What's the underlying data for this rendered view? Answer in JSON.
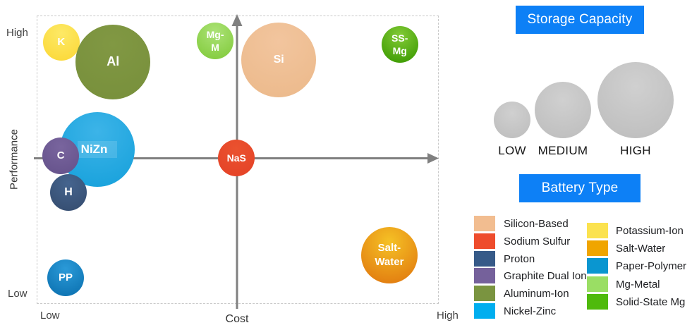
{
  "figure": {
    "y_axis_label": "Performance",
    "x_axis_label": "Cost",
    "y_high_label": "High",
    "y_low_label": "Low",
    "x_low_label": "Low",
    "x_high_label": "High"
  },
  "chart_data": {
    "type": "scatter",
    "title": "",
    "xlabel": "Cost",
    "ylabel": "Performance",
    "x_axis_range_labels": [
      "Low",
      "High"
    ],
    "y_axis_range_labels": [
      "Low",
      "High"
    ],
    "size_encoding": "Storage Capacity",
    "color_encoding": "Battery Type",
    "grid": false,
    "bubbles": [
      {
        "label": "K",
        "lines": [
          "K"
        ],
        "battery_type": "Potassium-Ion",
        "cost": 0.061,
        "performance": 0.907,
        "capacity": "LOW",
        "color_top": "#fde966",
        "color_bottom": "#fbd93a",
        "font_px": 15
      },
      {
        "label": "Al",
        "lines": [
          "Al"
        ],
        "battery_type": "Aluminum-Ion",
        "cost": 0.19,
        "performance": 0.839,
        "capacity": "HIGH",
        "color_top": "#819843",
        "color_bottom": "#78903c",
        "font_px": 18
      },
      {
        "label": "Mg-M",
        "lines": [
          "Mg-",
          "M"
        ],
        "battery_type": "Mg-Metal",
        "cost": 0.444,
        "performance": 0.912,
        "capacity": "LOW",
        "color_top": "#abe276",
        "color_bottom": "#84cc3f",
        "font_px": 14
      },
      {
        "label": "Si",
        "lines": [
          "Si"
        ],
        "battery_type": "Silicon-Based",
        "cost": 0.602,
        "performance": 0.846,
        "capacity": "HIGH",
        "color_top": "#f2c59e",
        "color_bottom": "#ecba8c",
        "font_px": 16
      },
      {
        "label": "SS-Mg",
        "lines": [
          "SS-",
          "Mg"
        ],
        "battery_type": "Solid-State Mg",
        "cost": 0.903,
        "performance": 0.9,
        "capacity": "LOW",
        "color_top": "#82ca36",
        "color_bottom": "#3e9c03",
        "font_px": 14
      },
      {
        "label": "NiZn",
        "lines": [
          "NiZn"
        ],
        "battery_type": "Nickel-Zinc",
        "cost": 0.151,
        "performance": 0.536,
        "capacity": "HIGH",
        "color_top": "#3cb4e8",
        "color_bottom": "#19a2dc",
        "font_px": 17,
        "label_highlight": true
      },
      {
        "label": "C",
        "lines": [
          "C"
        ],
        "battery_type": "Graphite Dual Ion",
        "cost": 0.06,
        "performance": 0.514,
        "capacity": "LOW",
        "color_top": "#79659e",
        "color_bottom": "#66538c",
        "font_px": 15
      },
      {
        "label": "H",
        "lines": [
          "H"
        ],
        "battery_type": "Proton",
        "cost": 0.079,
        "performance": 0.386,
        "capacity": "LOW",
        "color_top": "#45648e",
        "color_bottom": "#364e71",
        "font_px": 16
      },
      {
        "label": "NaS",
        "lines": [
          "NaS"
        ],
        "battery_type": "Sodium Sulfur",
        "cost": 0.497,
        "performance": 0.506,
        "capacity": "LOW",
        "color_top": "#ea522f",
        "color_bottom": "#e54327",
        "font_px": 14
      },
      {
        "label": "PP",
        "lines": [
          "PP"
        ],
        "battery_type": "Paper-Polymer",
        "cost": 0.072,
        "performance": 0.091,
        "capacity": "LOW",
        "color_top": "#2b9ad8",
        "color_bottom": "#0d73b2",
        "font_px": 15
      },
      {
        "label": "Salt-Water",
        "lines": [
          "Salt-",
          "Water"
        ],
        "battery_type": "Salt-Water",
        "cost": 0.877,
        "performance": 0.169,
        "capacity": "MEDIUM",
        "color_top": "#f5c125",
        "color_bottom": "#e27c10",
        "font_px": 15
      }
    ]
  },
  "storage_capacity_legend": {
    "title": "Storage Capacity",
    "circle_color_top": "#d0d0d0",
    "circle_color_bottom": "#bcbcbc",
    "items": [
      {
        "label": "LOW",
        "r": 26
      },
      {
        "label": "MEDIUM",
        "r": 40
      },
      {
        "label": "HIGH",
        "r": 54
      }
    ]
  },
  "battery_type_legend": {
    "title": "Battery Type",
    "columns": [
      {
        "items": [
          {
            "label": "Silicon-Based",
            "color": "#f2bd90"
          },
          {
            "label": "Sodium Sulfur",
            "color": "#ee4c2c"
          },
          {
            "label": "Proton",
            "color": "#365a88"
          },
          {
            "label": "Graphite Dual Ion",
            "color": "#75619b"
          },
          {
            "label": "Aluminum-Ion",
            "color": "#7a9440"
          },
          {
            "label": "Nickel-Zinc",
            "color": "#00aeef"
          }
        ]
      },
      {
        "items": [
          {
            "label": "Potassium-Ion",
            "color": "#fbe24f"
          },
          {
            "label": "Salt-Water",
            "color": "#f0a500"
          },
          {
            "label": "Paper-Polymer",
            "color": "#0a96d0"
          },
          {
            "label": "Mg-Metal",
            "color": "#9ade64"
          },
          {
            "label": "Solid-State Mg",
            "color": "#4fba0c"
          }
        ]
      }
    ]
  },
  "colors": {
    "header_blue": "#0d80f6",
    "axis_gray": "#808080"
  }
}
